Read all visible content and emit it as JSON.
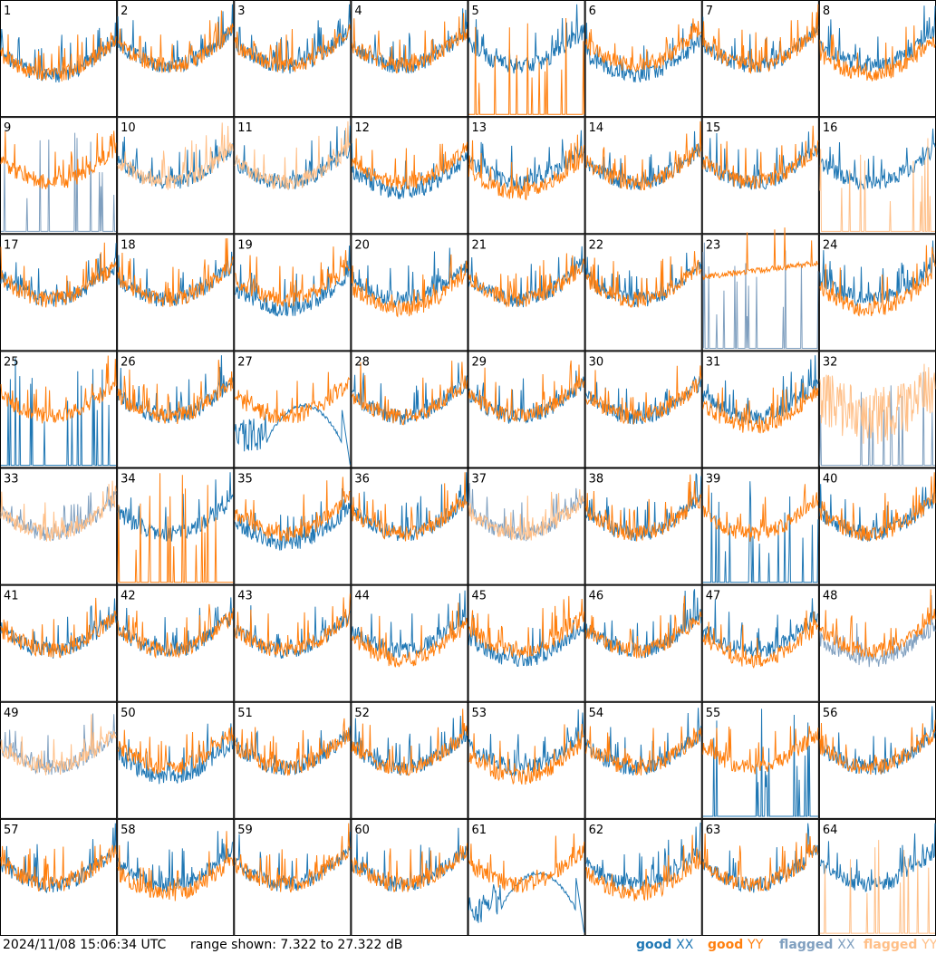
{
  "footer": {
    "timestamp": "2024/11/08 15:06:34 UTC",
    "range": "range shown: 7.322 to 27.322 dB"
  },
  "legend": [
    {
      "label": "good",
      "pol": "XX",
      "color": "#1f77b4"
    },
    {
      "label": "good",
      "pol": "YY",
      "color": "#ff7f0e"
    },
    {
      "label": "flagged",
      "pol": "XX",
      "color": "#7f9fbf"
    },
    {
      "label": "flagged",
      "pol": "YY",
      "color": "#ffbf87"
    }
  ],
  "chart_data": {
    "type": "line",
    "grid": {
      "rows": 8,
      "cols": 8
    },
    "ylim": [
      7.322,
      27.322
    ],
    "yunit": "dB",
    "series_names": [
      "good XX",
      "good YY",
      "flagged XX",
      "flagged YY"
    ],
    "panels": [
      {
        "label": "1",
        "xx": "good",
        "yy": "good",
        "xx_shape": "bump",
        "yy_shape": "bump"
      },
      {
        "label": "2",
        "xx": "good",
        "yy": "good",
        "xx_shape": "normal",
        "yy_shape": "normal"
      },
      {
        "label": "3",
        "xx": "good",
        "yy": "good",
        "xx_shape": "normal",
        "yy_shape": "normal"
      },
      {
        "label": "4",
        "xx": "good",
        "yy": "good",
        "xx_shape": "normal",
        "yy_shape": "normal"
      },
      {
        "label": "5",
        "xx": "good",
        "yy": "good",
        "xx_shape": "normal",
        "yy_shape": "spikes"
      },
      {
        "label": "6",
        "xx": "good",
        "yy": "good",
        "xx_shape": "bump",
        "yy_shape": "normal"
      },
      {
        "label": "7",
        "xx": "good",
        "yy": "good",
        "xx_shape": "normal",
        "yy_shape": "normal"
      },
      {
        "label": "8",
        "xx": "good",
        "yy": "good",
        "xx_shape": "normal",
        "yy_shape": "bump"
      },
      {
        "label": "9",
        "xx": "flagged",
        "yy": "good",
        "xx_shape": "spikes",
        "yy_shape": "normal"
      },
      {
        "label": "10",
        "xx": "good",
        "yy": "flagged",
        "xx_shape": "normal",
        "yy_shape": "normal"
      },
      {
        "label": "11",
        "xx": "good",
        "yy": "flagged",
        "xx_shape": "normal",
        "yy_shape": "normal"
      },
      {
        "label": "12",
        "xx": "good",
        "yy": "good",
        "xx_shape": "bump",
        "yy_shape": "normal"
      },
      {
        "label": "13",
        "xx": "good",
        "yy": "good",
        "xx_shape": "normal",
        "yy_shape": "bump"
      },
      {
        "label": "14",
        "xx": "good",
        "yy": "good",
        "xx_shape": "normal",
        "yy_shape": "normal"
      },
      {
        "label": "15",
        "xx": "good",
        "yy": "good",
        "xx_shape": "normal",
        "yy_shape": "normal"
      },
      {
        "label": "16",
        "xx": "good",
        "yy": "flagged",
        "xx_shape": "normal",
        "yy_shape": "spikes"
      },
      {
        "label": "17",
        "xx": "good",
        "yy": "good",
        "xx_shape": "normal",
        "yy_shape": "normal"
      },
      {
        "label": "18",
        "xx": "good",
        "yy": "good",
        "xx_shape": "normal",
        "yy_shape": "normal"
      },
      {
        "label": "19",
        "xx": "good",
        "yy": "good",
        "xx_shape": "bump",
        "yy_shape": "normal"
      },
      {
        "label": "20",
        "xx": "good",
        "yy": "good",
        "xx_shape": "normal",
        "yy_shape": "bump"
      },
      {
        "label": "21",
        "xx": "good",
        "yy": "good",
        "xx_shape": "normal",
        "yy_shape": "normal"
      },
      {
        "label": "22",
        "xx": "good",
        "yy": "good",
        "xx_shape": "normal",
        "yy_shape": "normal"
      },
      {
        "label": "23",
        "xx": "flagged",
        "yy": "good",
        "xx_shape": "spikes",
        "yy_shape": "flat"
      },
      {
        "label": "24",
        "xx": "good",
        "yy": "good",
        "xx_shape": "normal",
        "yy_shape": "bump"
      },
      {
        "label": "25",
        "xx": "good",
        "yy": "good",
        "xx_shape": "spikes",
        "yy_shape": "normal"
      },
      {
        "label": "26",
        "xx": "good",
        "yy": "good",
        "xx_shape": "normal",
        "yy_shape": "normal"
      },
      {
        "label": "27",
        "xx": "good",
        "yy": "good",
        "xx_shape": "decay",
        "yy_shape": "normal"
      },
      {
        "label": "28",
        "xx": "good",
        "yy": "good",
        "xx_shape": "normal",
        "yy_shape": "normal"
      },
      {
        "label": "29",
        "xx": "good",
        "yy": "good",
        "xx_shape": "normal",
        "yy_shape": "normal"
      },
      {
        "label": "30",
        "xx": "good",
        "yy": "good",
        "xx_shape": "normal",
        "yy_shape": "normal"
      },
      {
        "label": "31",
        "xx": "good",
        "yy": "good",
        "xx_shape": "normal",
        "yy_shape": "bump"
      },
      {
        "label": "32",
        "xx": "flagged",
        "yy": "flagged",
        "xx_shape": "spikes",
        "yy_shape": "noisy"
      },
      {
        "label": "33",
        "xx": "flagged",
        "yy": "flagged",
        "xx_shape": "normal",
        "yy_shape": "normal"
      },
      {
        "label": "34",
        "xx": "good",
        "yy": "good",
        "xx_shape": "normal",
        "yy_shape": "spikes"
      },
      {
        "label": "35",
        "xx": "good",
        "yy": "good",
        "xx_shape": "bump",
        "yy_shape": "normal"
      },
      {
        "label": "36",
        "xx": "good",
        "yy": "good",
        "xx_shape": "normal",
        "yy_shape": "normal"
      },
      {
        "label": "37",
        "xx": "flagged",
        "yy": "flagged",
        "xx_shape": "normal",
        "yy_shape": "normal"
      },
      {
        "label": "38",
        "xx": "good",
        "yy": "good",
        "xx_shape": "normal",
        "yy_shape": "normal"
      },
      {
        "label": "39",
        "xx": "good",
        "yy": "good",
        "xx_shape": "spikes",
        "yy_shape": "normal"
      },
      {
        "label": "40",
        "xx": "good",
        "yy": "good",
        "xx_shape": "normal",
        "yy_shape": "normal"
      },
      {
        "label": "41",
        "xx": "good",
        "yy": "good",
        "xx_shape": "normal",
        "yy_shape": "normal"
      },
      {
        "label": "42",
        "xx": "good",
        "yy": "good",
        "xx_shape": "normal",
        "yy_shape": "normal"
      },
      {
        "label": "43",
        "xx": "good",
        "yy": "good",
        "xx_shape": "normal",
        "yy_shape": "normal"
      },
      {
        "label": "44",
        "xx": "good",
        "yy": "good",
        "xx_shape": "normal",
        "yy_shape": "bump"
      },
      {
        "label": "45",
        "xx": "good",
        "yy": "good",
        "xx_shape": "bump",
        "yy_shape": "normal"
      },
      {
        "label": "46",
        "xx": "good",
        "yy": "good",
        "xx_shape": "normal",
        "yy_shape": "normal"
      },
      {
        "label": "47",
        "xx": "good",
        "yy": "good",
        "xx_shape": "normal",
        "yy_shape": "bump"
      },
      {
        "label": "48",
        "xx": "flagged",
        "yy": "good",
        "xx_shape": "bump",
        "yy_shape": "normal"
      },
      {
        "label": "49",
        "xx": "flagged",
        "yy": "flagged",
        "xx_shape": "normal",
        "yy_shape": "normal"
      },
      {
        "label": "50",
        "xx": "good",
        "yy": "good",
        "xx_shape": "bump",
        "yy_shape": "normal"
      },
      {
        "label": "51",
        "xx": "good",
        "yy": "good",
        "xx_shape": "normal",
        "yy_shape": "normal"
      },
      {
        "label": "52",
        "xx": "good",
        "yy": "good",
        "xx_shape": "normal",
        "yy_shape": "normal"
      },
      {
        "label": "53",
        "xx": "good",
        "yy": "good",
        "xx_shape": "normal",
        "yy_shape": "bump"
      },
      {
        "label": "54",
        "xx": "good",
        "yy": "good",
        "xx_shape": "normal",
        "yy_shape": "normal"
      },
      {
        "label": "55",
        "xx": "good",
        "yy": "good",
        "xx_shape": "spikes",
        "yy_shape": "normal"
      },
      {
        "label": "56",
        "xx": "good",
        "yy": "good",
        "xx_shape": "normal",
        "yy_shape": "normal"
      },
      {
        "label": "57",
        "xx": "good",
        "yy": "good",
        "xx_shape": "normal",
        "yy_shape": "normal"
      },
      {
        "label": "58",
        "xx": "good",
        "yy": "good",
        "xx_shape": "normal",
        "yy_shape": "bump"
      },
      {
        "label": "59",
        "xx": "good",
        "yy": "good",
        "xx_shape": "normal",
        "yy_shape": "normal"
      },
      {
        "label": "60",
        "xx": "good",
        "yy": "good",
        "xx_shape": "normal",
        "yy_shape": "normal"
      },
      {
        "label": "61",
        "xx": "good",
        "yy": "good",
        "xx_shape": "decay",
        "yy_shape": "normal"
      },
      {
        "label": "62",
        "xx": "good",
        "yy": "good",
        "xx_shape": "normal",
        "yy_shape": "bump"
      },
      {
        "label": "63",
        "xx": "good",
        "yy": "good",
        "xx_shape": "normal",
        "yy_shape": "normal"
      },
      {
        "label": "64",
        "xx": "good",
        "yy": "flagged",
        "xx_shape": "normal",
        "yy_shape": "spikes"
      }
    ]
  }
}
